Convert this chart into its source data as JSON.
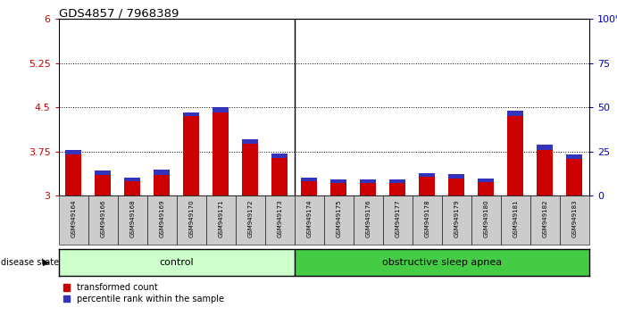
{
  "title": "GDS4857 / 7968389",
  "samples": [
    "GSM949164",
    "GSM949166",
    "GSM949168",
    "GSM949169",
    "GSM949170",
    "GSM949171",
    "GSM949172",
    "GSM949173",
    "GSM949174",
    "GSM949175",
    "GSM949176",
    "GSM949177",
    "GSM949178",
    "GSM949179",
    "GSM949180",
    "GSM949181",
    "GSM949182",
    "GSM949183"
  ],
  "red_values": [
    3.7,
    3.35,
    3.25,
    3.35,
    4.35,
    4.42,
    3.88,
    3.65,
    3.25,
    3.22,
    3.22,
    3.22,
    3.32,
    3.3,
    3.23,
    4.35,
    3.78,
    3.63
  ],
  "blue_values": [
    0.08,
    0.08,
    0.06,
    0.09,
    0.07,
    0.08,
    0.08,
    0.07,
    0.06,
    0.06,
    0.06,
    0.06,
    0.07,
    0.07,
    0.06,
    0.09,
    0.09,
    0.07
  ],
  "ymin": 3.0,
  "ymax": 6.0,
  "yticks_left": [
    3.0,
    3.75,
    4.5,
    5.25,
    6.0
  ],
  "yticklabels_left": [
    "3",
    "3.75",
    "4.5",
    "5.25",
    "6"
  ],
  "dotted_lines": [
    3.75,
    4.5,
    5.25
  ],
  "right_yticks_pct": [
    0,
    25,
    50,
    75,
    100
  ],
  "right_yticklabels": [
    "0",
    "25",
    "50",
    "75",
    "100%"
  ],
  "bar_width": 0.55,
  "red_color": "#cc0000",
  "blue_color": "#3333bb",
  "control_color": "#ccffcc",
  "apnea_color": "#44cc44",
  "control_label": "control",
  "apnea_label": "obstructive sleep apnea",
  "disease_state_label": "disease state",
  "legend_red": "transformed count",
  "legend_blue": "percentile rank within the sample",
  "n_control": 8,
  "tick_color_left": "#cc0000",
  "tick_color_right": "#0000cc",
  "xtick_bg": "#cccccc",
  "separator_color": "#000000"
}
